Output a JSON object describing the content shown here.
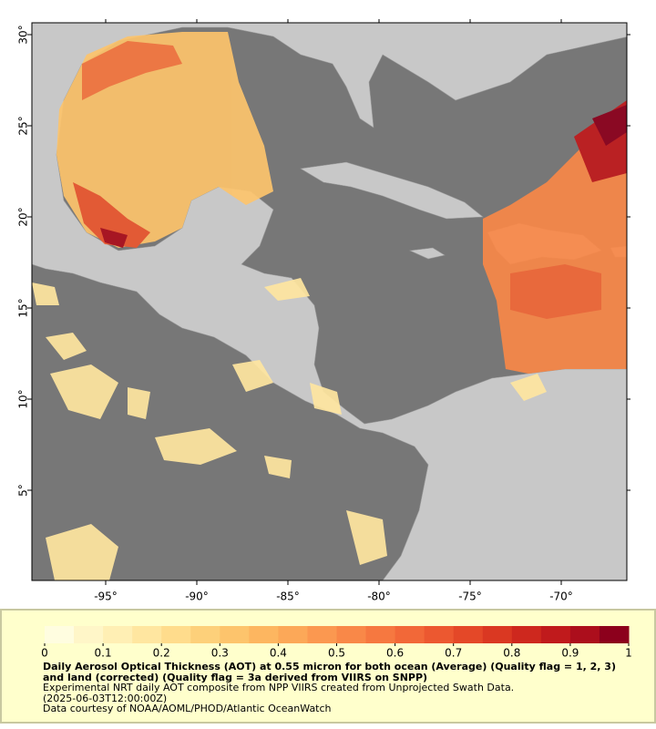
{
  "chart_data": {
    "type": "map",
    "xlim": [
      -99.05,
      -66.4
    ],
    "ylim": [
      0.05,
      30.65
    ],
    "xticks": [
      {
        "value": -95,
        "label": "-95°"
      },
      {
        "value": -90,
        "label": "-90°"
      },
      {
        "value": -85,
        "label": "-85°"
      },
      {
        "value": -80,
        "label": "-80°"
      },
      {
        "value": -75,
        "label": "-75°"
      },
      {
        "value": -70,
        "label": "-70°"
      }
    ],
    "yticks": [
      {
        "value": 5,
        "label": "5°"
      },
      {
        "value": 10,
        "label": "10°"
      },
      {
        "value": 15,
        "label": "15°"
      },
      {
        "value": 20,
        "label": "20°"
      },
      {
        "value": 25,
        "label": "25°"
      },
      {
        "value": 30,
        "label": "30°"
      }
    ],
    "colorbar": {
      "lim": [
        0,
        1
      ],
      "ticks": [
        0,
        0.1,
        0.2,
        0.3,
        0.4,
        0.5,
        0.6,
        0.7,
        0.8,
        0.9,
        1
      ],
      "colors": [
        "#fffde0",
        "#fff6c8",
        "#ffefb4",
        "#ffe6a0",
        "#ffdc8c",
        "#fdd07a",
        "#fdc46c",
        "#fdb660",
        "#fca858",
        "#fb9850",
        "#f98848",
        "#f67840",
        "#f26838",
        "#ec5830",
        "#e44828",
        "#da3822",
        "#ce281e",
        "#c01a1c",
        "#ac0e1c",
        "#8c001c"
      ]
    },
    "title": "Daily Aerosol Optical Thickness (AOT) at 0.55 micron for both ocean (Average) (Quality flag = 1, 2, 3) and land (corrected) (Quality flag = 3a derived from VIIRS on SNPP)",
    "notes": [
      "Experimental NRT daily AOT composite from NPP VIIRS created from Unprojected Swath Data.",
      "(2025-06-03T12:00:00Z)",
      "Data courtesy of NOAA/AOML/PHOD/Atlantic OceanWatch"
    ]
  }
}
